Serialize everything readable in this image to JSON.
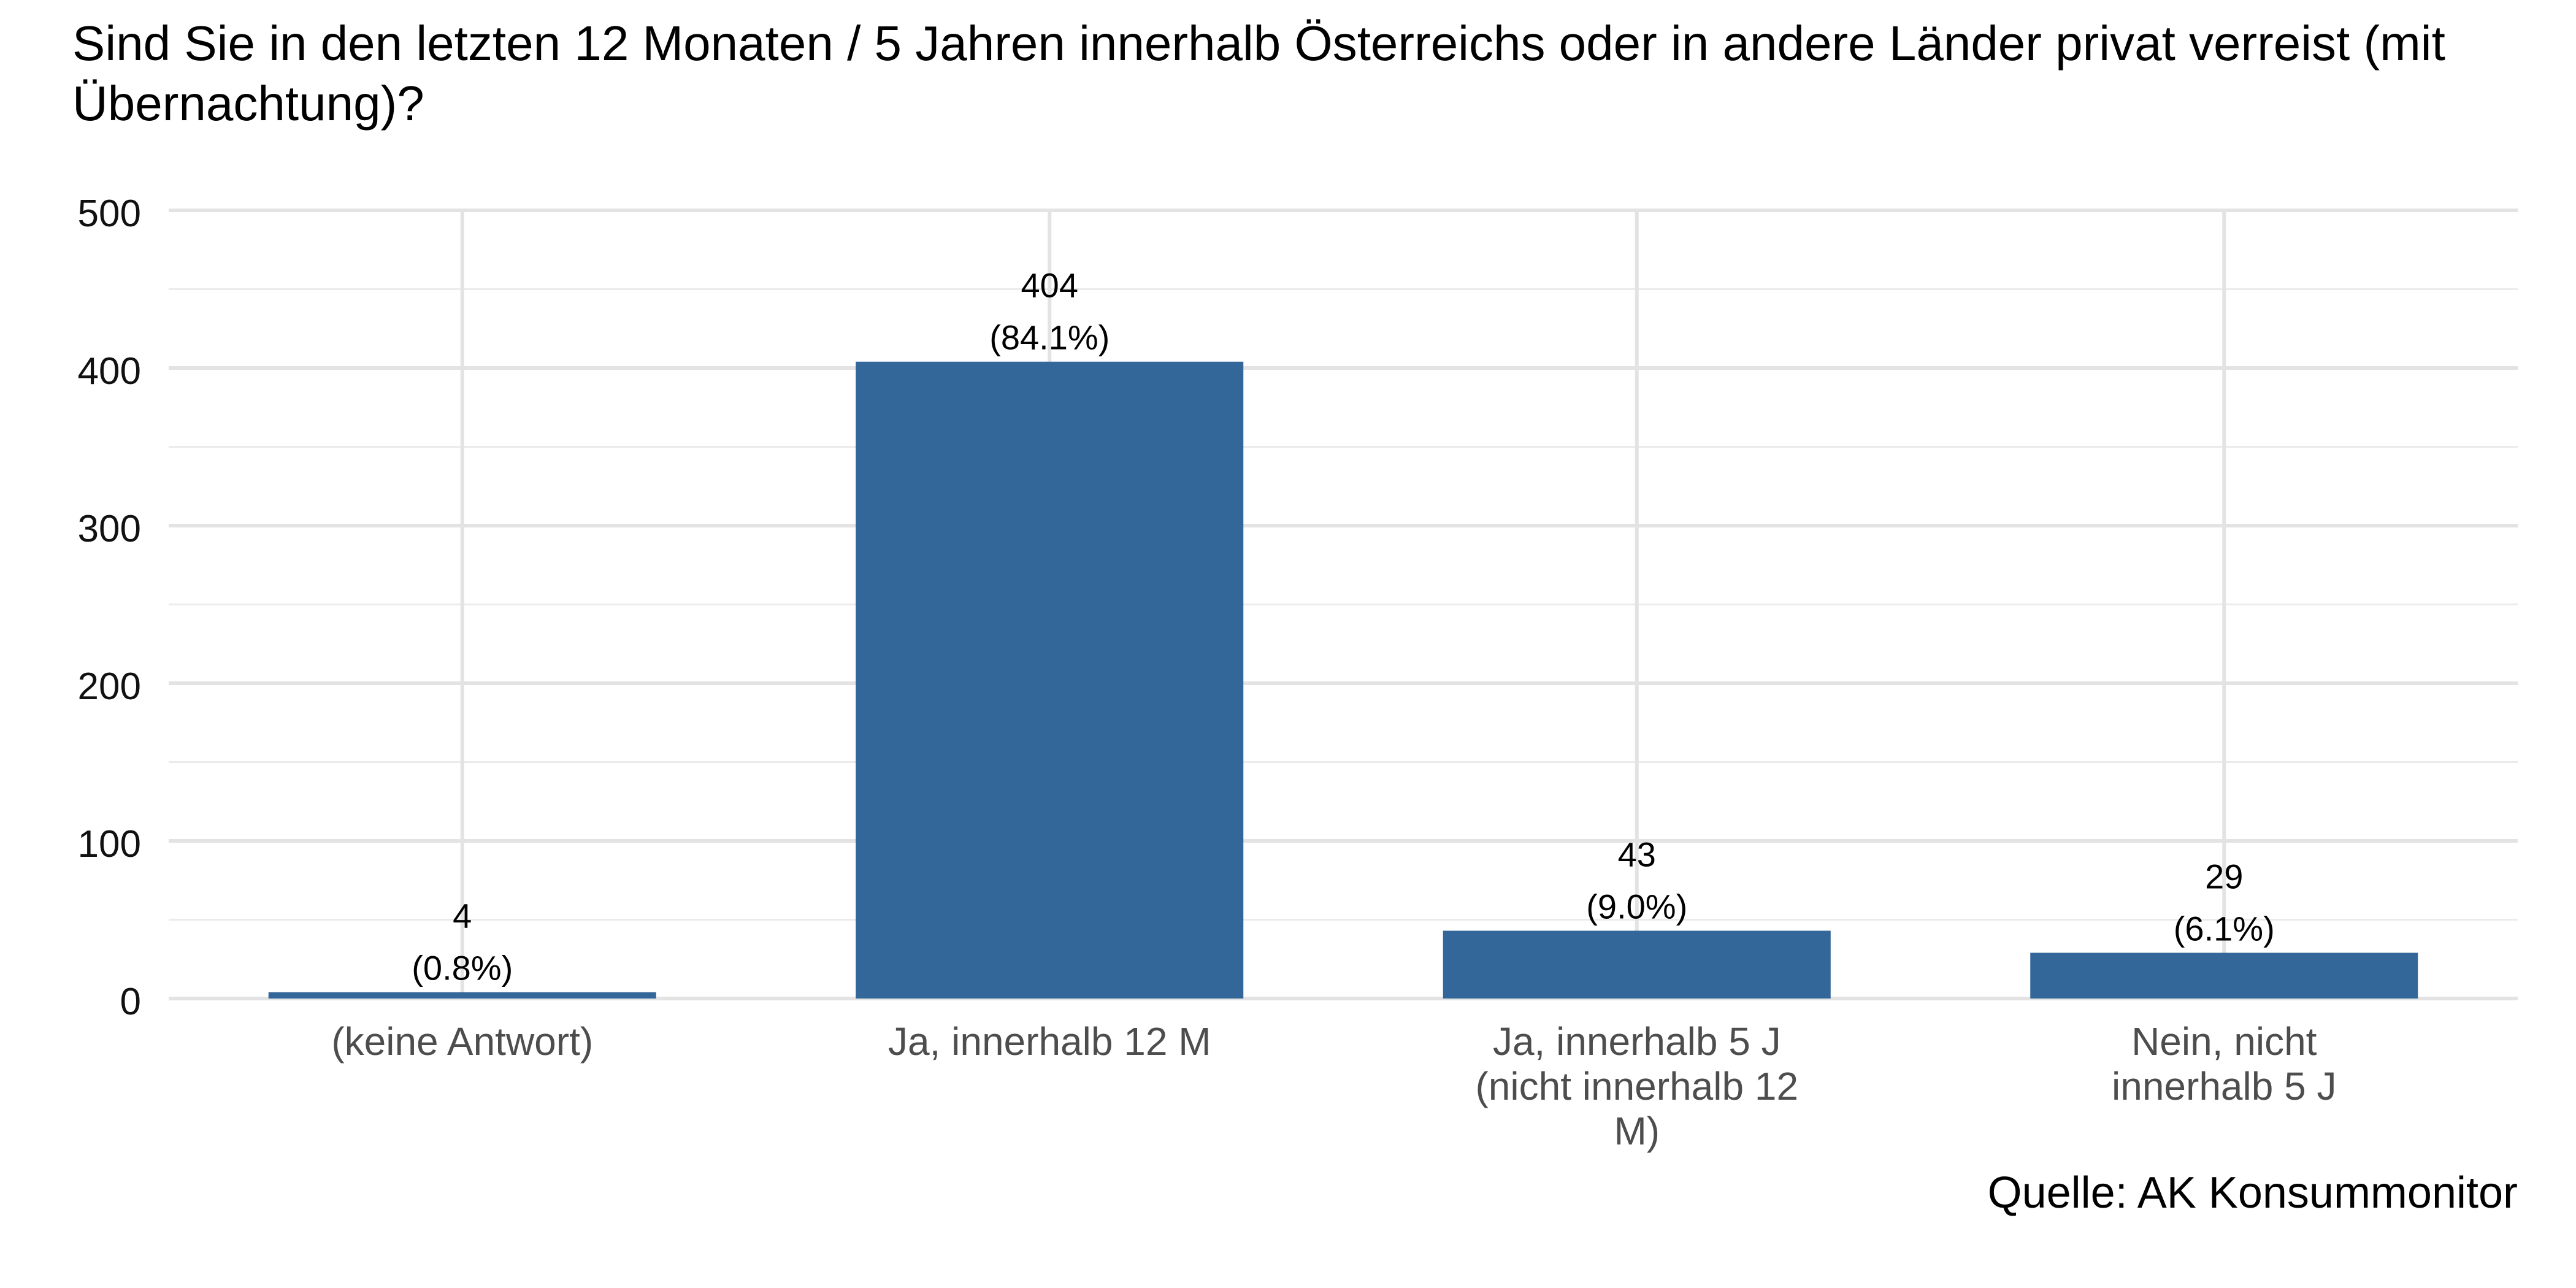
{
  "chart_data": {
    "type": "bar",
    "title": "Sind Sie in den letzten 12 Monaten / 5 Jahren innerhalb Österreichs oder in andere Länder privat verreist (mit Übernachtung)?",
    "source": "Quelle: AK Konsummonitor",
    "xlabel": "",
    "ylabel": "",
    "ylim": [
      0,
      500
    ],
    "yticks": [
      0,
      100,
      200,
      300,
      400,
      500
    ],
    "grid": true,
    "bar_color": "#336699",
    "categories": [
      [
        "(keine Antwort)"
      ],
      [
        "Ja, innerhalb 12 M"
      ],
      [
        "Ja, innerhalb 5 J",
        "(nicht innerhalb 12",
        "M)"
      ],
      [
        "Nein, nicht",
        "innerhalb 5 J"
      ]
    ],
    "values": [
      4,
      404,
      43,
      29
    ],
    "percent_labels": [
      "(0.8%)",
      "(84.1%)",
      "(9.0%)",
      "(6.1%)"
    ]
  }
}
